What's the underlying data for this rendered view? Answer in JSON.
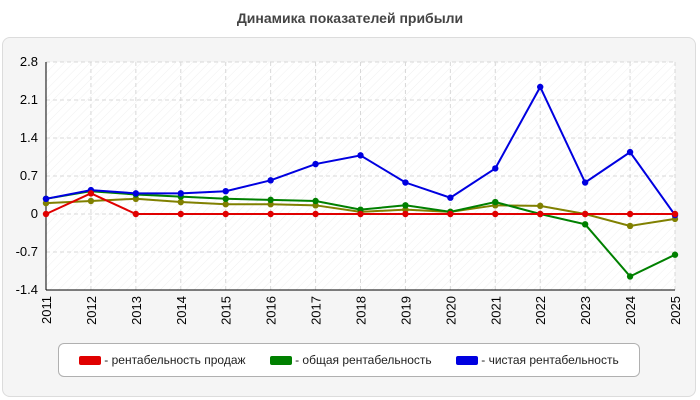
{
  "chart_data": {
    "type": "line",
    "title": "Динамика показателей прибыли",
    "x": [
      "2011",
      "2012",
      "2013",
      "2014",
      "2015",
      "2016",
      "2017",
      "2018",
      "2019",
      "2020",
      "2021",
      "2022",
      "2023",
      "2024",
      "2025"
    ],
    "ylim": [
      -1.4,
      2.8
    ],
    "yticks": [
      2.8,
      2.1,
      1.4,
      0.7,
      0,
      -0.7,
      -1.4
    ],
    "ytick_labels": [
      "2.8",
      "2.1",
      "1.4",
      "0.7",
      "0",
      "-0.7",
      "-1.4"
    ],
    "grid": true,
    "legend_position": "bottom",
    "series": [
      {
        "name": "- рентабельность продаж",
        "color": "#e00000",
        "values": [
          0.0,
          0.38,
          0.0,
          0.0,
          0.0,
          0.0,
          0.0,
          0.0,
          0.0,
          0.0,
          0.0,
          0.0,
          0.0,
          0.0,
          0.0
        ]
      },
      {
        "name": "- общая рентабельность",
        "color": "#008000",
        "values": [
          0.28,
          0.42,
          0.36,
          0.32,
          0.28,
          0.26,
          0.24,
          0.08,
          0.16,
          0.04,
          0.22,
          0.0,
          -0.19,
          -1.15,
          -0.75
        ]
      },
      {
        "name": "- чистая рентабельность",
        "color": "#0000e0",
        "values": [
          0.28,
          0.44,
          0.38,
          0.38,
          0.42,
          0.62,
          0.92,
          1.08,
          0.58,
          0.3,
          0.84,
          2.34,
          0.58,
          1.14,
          -0.02
        ]
      },
      {
        "name": "",
        "color": "#808000",
        "values": [
          0.2,
          0.24,
          0.28,
          0.22,
          0.18,
          0.18,
          0.16,
          0.04,
          0.08,
          0.04,
          0.16,
          0.15,
          0.0,
          -0.22,
          -0.09
        ]
      }
    ]
  }
}
